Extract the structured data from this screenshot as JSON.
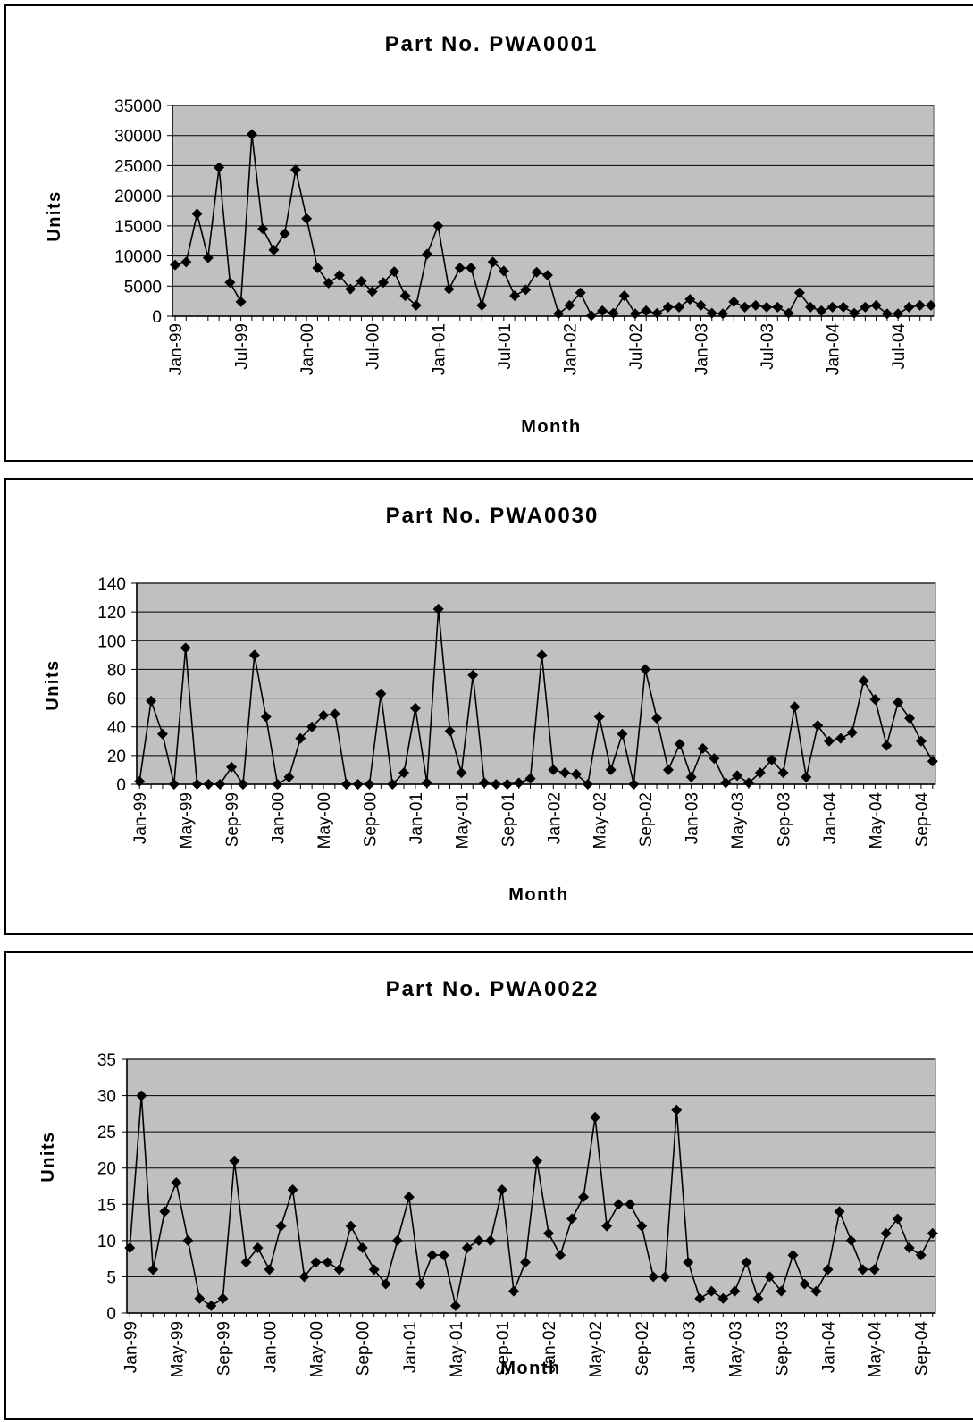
{
  "chart_data": [
    {
      "type": "line",
      "title": "Part No. PWA0001",
      "xlabel": "Month",
      "ylabel": "Units",
      "ylim": [
        0,
        35000
      ],
      "yticks": [
        "0",
        "5000",
        "10000",
        "15000",
        "20000",
        "25000",
        "30000",
        "35000"
      ],
      "xtick_labels": [
        "Jan-99",
        "Jul-99",
        "Jan-00",
        "Jul-00",
        "Jan-01",
        "Jul-01",
        "Jan-02",
        "Jul-02",
        "Jan-03",
        "Jul-03",
        "Jan-04",
        "Jul-04"
      ],
      "xtick_step_months": 6,
      "x_start": "Jan-99",
      "grid": true,
      "series": [
        {
          "marker": "diamond",
          "values": [
            8500,
            9000,
            17000,
            9700,
            24700,
            5600,
            2400,
            30200,
            14500,
            11000,
            13700,
            24300,
            16200,
            8000,
            5500,
            6800,
            4500,
            5800,
            4100,
            5600,
            7400,
            3400,
            1800,
            10300,
            15000,
            4500,
            8000,
            8000,
            1800,
            9000,
            7500,
            3400,
            4400,
            7300,
            6800,
            400,
            1800,
            3900,
            100,
            900,
            500,
            3400,
            400,
            900,
            500,
            1500,
            1500,
            2800,
            1800,
            500,
            400,
            2400,
            1500,
            1800,
            1500,
            1500,
            500,
            3900,
            1500,
            900,
            1500,
            1500,
            500,
            1500,
            1800,
            400,
            400,
            1500,
            1800,
            1800
          ]
        }
      ]
    },
    {
      "type": "line",
      "title": "Part No. PWA0030",
      "xlabel": "Month",
      "ylabel": "Units",
      "ylim": [
        0,
        140
      ],
      "yticks": [
        "0",
        "20",
        "40",
        "60",
        "80",
        "100",
        "120",
        "140"
      ],
      "xtick_labels": [
        "Jan-99",
        "May-99",
        "Sep-99",
        "Jan-00",
        "May-00",
        "Sep-00",
        "Jan-01",
        "May-01",
        "Sep-01",
        "Jan-02",
        "May-02",
        "Sep-02",
        "Jan-03",
        "May-03",
        "Sep-03",
        "Jan-04",
        "May-04",
        "Sep-04"
      ],
      "xtick_step_months": 4,
      "x_start": "Jan-99",
      "grid": true,
      "series": [
        {
          "marker": "diamond",
          "values": [
            2,
            58,
            35,
            0,
            95,
            0,
            0,
            0,
            12,
            0,
            90,
            47,
            0,
            5,
            32,
            40,
            48,
            49,
            0,
            0,
            0,
            63,
            0,
            8,
            53,
            1,
            122,
            37,
            8,
            76,
            1,
            0,
            0,
            1,
            4,
            90,
            10,
            8,
            7,
            0,
            47,
            10,
            35,
            0,
            80,
            46,
            10,
            28,
            5,
            25,
            18,
            1,
            6,
            1,
            8,
            17,
            8,
            54,
            5,
            41,
            30,
            32,
            36,
            72,
            59,
            27,
            57,
            46,
            30,
            16
          ]
        }
      ]
    },
    {
      "type": "line",
      "title": "Part No. PWA0022",
      "xlabel": "Month",
      "ylabel": "Units",
      "ylim": [
        0,
        35
      ],
      "yticks": [
        "0",
        "5",
        "10",
        "15",
        "20",
        "25",
        "30",
        "35"
      ],
      "xtick_labels": [
        "Jan-99",
        "May-99",
        "Sep-99",
        "Jan-00",
        "May-00",
        "Sep-00",
        "Jan-01",
        "May-01",
        "Sep-01",
        "Jan-02",
        "May-02",
        "Sep-02",
        "Jan-03",
        "May-03",
        "Sep-03",
        "Jan-04",
        "May-04",
        "Sep-04"
      ],
      "xtick_step_months": 4,
      "x_start": "Jan-99",
      "grid": true,
      "series": [
        {
          "marker": "diamond",
          "values": [
            9,
            30,
            6,
            14,
            18,
            10,
            2,
            1,
            2,
            21,
            7,
            9,
            6,
            12,
            17,
            5,
            7,
            7,
            6,
            12,
            9,
            6,
            4,
            10,
            16,
            4,
            8,
            8,
            1,
            9,
            10,
            10,
            17,
            3,
            7,
            21,
            11,
            8,
            13,
            16,
            27,
            12,
            15,
            15,
            12,
            5,
            5,
            28,
            7,
            2,
            3,
            2,
            3,
            7,
            2,
            5,
            3,
            8,
            4,
            3,
            6,
            14,
            10,
            6,
            6,
            11,
            13,
            9,
            8,
            11
          ]
        }
      ]
    }
  ]
}
